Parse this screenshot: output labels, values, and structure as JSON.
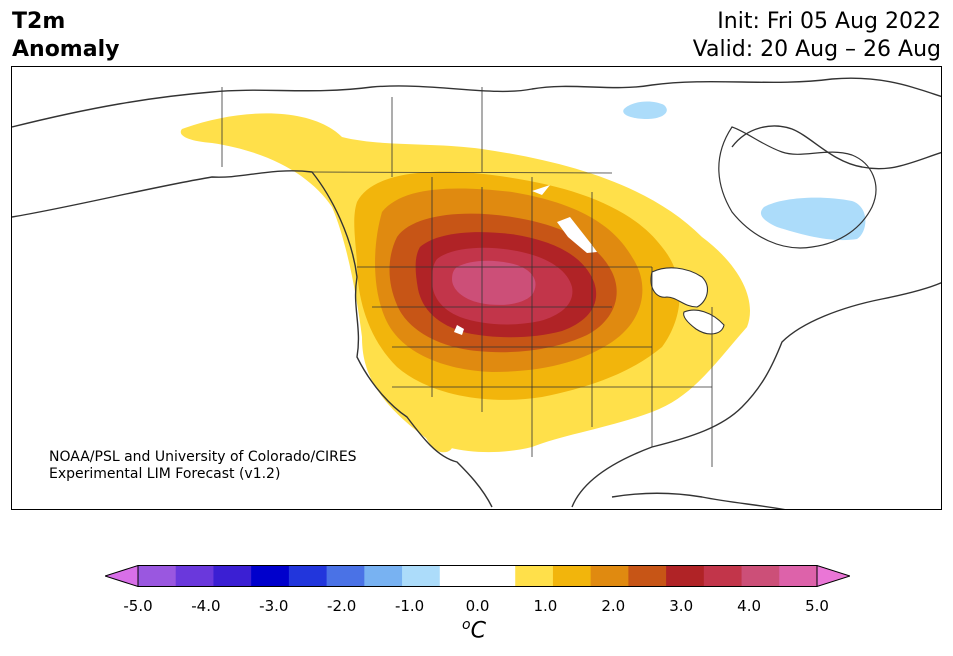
{
  "header": {
    "title_line1": "T2m",
    "title_line2": "Anomaly",
    "init": "Init: Fri 05 Aug 2022",
    "valid": "Valid: 20 Aug – 26 Aug"
  },
  "credit": {
    "line1": "NOAA/PSL and University of Colorado/CIRES",
    "line2": "Experimental LIM Forecast (v1.2)"
  },
  "colorbar": {
    "colors": [
      "#d86fe8",
      "#9a57e0",
      "#6a38dc",
      "#3b1fd3",
      "#0000cc",
      "#2236dc",
      "#4a72e6",
      "#78b2f2",
      "#acdcfa",
      "#ffffff",
      "#ffffff",
      "#ffe04a",
      "#f2b50c",
      "#e08a10",
      "#c75516",
      "#b02326",
      "#c2354a",
      "#cc4f78",
      "#dd62aa",
      "#ea76d6"
    ],
    "tick_labels": [
      "-5.0",
      "-4.0",
      "-3.0",
      "-2.0",
      "-1.0",
      "0.0",
      "1.0",
      "2.0",
      "3.0",
      "4.0",
      "5.0"
    ],
    "unit_symbol": "o",
    "unit_letter": "C"
  },
  "map": {
    "region": "North America",
    "variable": "2m temperature anomaly"
  }
}
